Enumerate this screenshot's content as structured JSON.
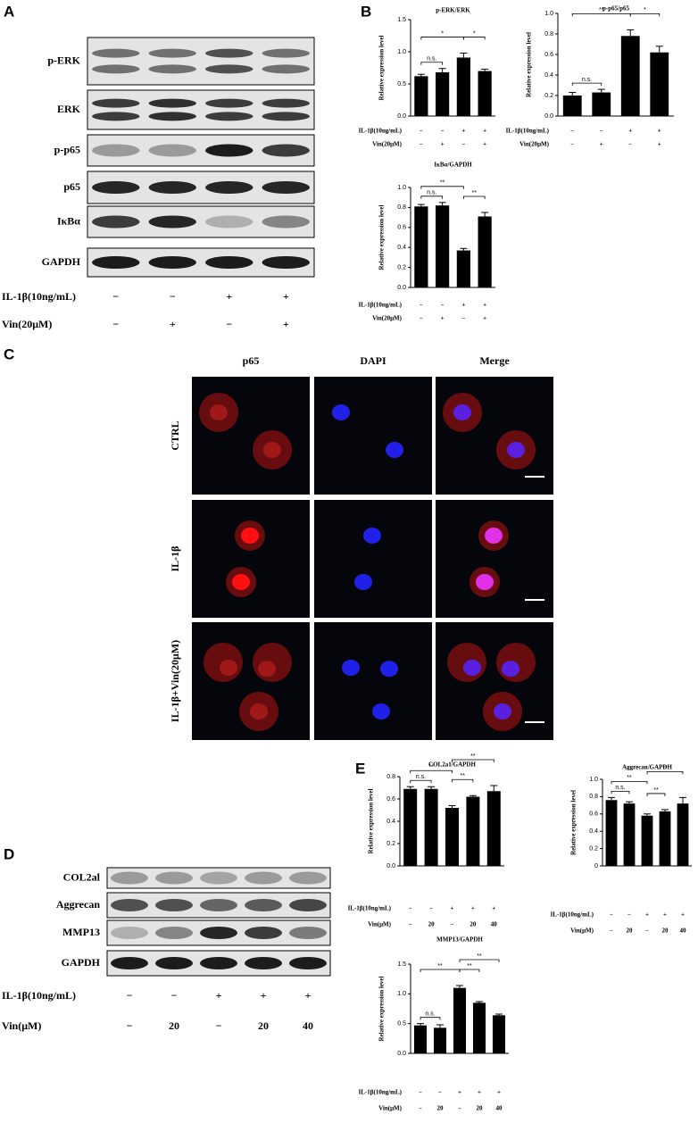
{
  "panel_labels": [
    "A",
    "B",
    "C",
    "D",
    "E"
  ],
  "blot_a": {
    "rows": [
      "p-ERK",
      "ERK",
      "p-p65",
      "p65",
      "IκBα",
      "GAPDH"
    ],
    "conditions": [
      {
        "label": "IL-1β(10ng/mL)",
        "signs": [
          "−",
          "−",
          "+",
          "+"
        ]
      },
      {
        "label": "Vin(20μM)",
        "signs": [
          "−",
          "+",
          "−",
          "+"
        ]
      }
    ]
  },
  "panel_c": {
    "columns": [
      "p65",
      "DAPI",
      "Merge"
    ],
    "rows": [
      "CTRL",
      "IL-1β",
      "IL-1β+Vin(20μM)"
    ]
  },
  "blot_d": {
    "rows": [
      "COL2al",
      "Aggrecan",
      "MMP13",
      "GAPDH"
    ],
    "conditions": [
      {
        "label": "IL-1β(10ng/mL)",
        "signs": [
          "−",
          "−",
          "+",
          "+",
          "+"
        ]
      },
      {
        "label": "Vin(μM)",
        "signs": [
          "−",
          "20",
          "−",
          "20",
          "40"
        ]
      }
    ]
  },
  "chart_data": [
    {
      "type": "bar",
      "title": "p-ERK/ERK",
      "y_label": "Relative expression level",
      "color": "#000000",
      "values": [
        0.62,
        0.68,
        0.91,
        0.7
      ],
      "errors": [
        0.03,
        0.06,
        0.07,
        0.03
      ],
      "ylim": [
        0,
        1.5
      ],
      "yticks": [
        {
          "value": 0,
          "label": "0.0"
        },
        0.5,
        {
          "value": 1,
          "label": "1.0"
        },
        1.5
      ],
      "conditions": [
        {
          "label": "IL-1β(10ng/mL)",
          "signs": [
            "−",
            "−",
            "+",
            "+"
          ]
        },
        {
          "label": "Vin(20μM)",
          "signs": [
            "−",
            "+",
            "−",
            "+"
          ]
        }
      ],
      "comparisons": [
        {
          "pair": [
            0,
            1
          ],
          "label": "n.s."
        },
        {
          "pair": [
            0,
            2
          ],
          "label": "*"
        },
        {
          "pair": [
            2,
            3
          ],
          "label": "*"
        }
      ]
    },
    {
      "type": "bar",
      "title": "p-p65/p65",
      "y_label": "Relative expression level",
      "color": "#000000",
      "values": [
        0.2,
        0.23,
        0.78,
        0.62
      ],
      "errors": [
        0.03,
        0.03,
        0.06,
        0.06
      ],
      "ylim": [
        0,
        1
      ],
      "yticks": [
        {
          "value": 0,
          "label": "0.0"
        },
        0.2,
        0.4,
        0.6,
        0.8,
        {
          "value": 1,
          "label": "1.0"
        }
      ],
      "conditions": [
        {
          "label": "IL-1β(10ng/mL)",
          "signs": [
            "−",
            "−",
            "+",
            "+"
          ]
        },
        {
          "label": "Vin(20μM)",
          "signs": [
            "−",
            "+",
            "−",
            "+"
          ]
        }
      ],
      "comparisons": [
        {
          "pair": [
            0,
            1
          ],
          "label": "n.s."
        },
        {
          "pair": [
            0,
            2
          ],
          "label": "**"
        },
        {
          "pair": [
            2,
            3
          ],
          "label": "*"
        }
      ]
    },
    {
      "type": "bar",
      "title": "IκBα/GAPDH",
      "y_label": "Relative expression level",
      "color": "#000000",
      "values": [
        0.81,
        0.82,
        0.37,
        0.71
      ],
      "errors": [
        0.02,
        0.03,
        0.02,
        0.04
      ],
      "ylim": [
        0,
        1
      ],
      "yticks": [
        {
          "value": 0,
          "label": "0.0"
        },
        0.2,
        0.4,
        0.6,
        0.8,
        {
          "value": 1,
          "label": "1.0"
        }
      ],
      "conditions": [
        {
          "label": "IL-1β(10ng/mL)",
          "signs": [
            "−",
            "−",
            "+",
            "+"
          ]
        },
        {
          "label": "Vin(20μM)",
          "signs": [
            "−",
            "+",
            "−",
            "+"
          ]
        }
      ],
      "comparisons": [
        {
          "pair": [
            0,
            1
          ],
          "label": "n.s."
        },
        {
          "pair": [
            0,
            2
          ],
          "label": "**"
        },
        {
          "pair": [
            2,
            3
          ],
          "label": "**"
        }
      ]
    },
    {
      "type": "bar",
      "title": "COL2a1/GAPDH",
      "y_label": "Relative expression level",
      "color": "#000000",
      "values": [
        0.69,
        0.69,
        0.52,
        0.62,
        0.67
      ],
      "errors": [
        0.02,
        0.02,
        0.02,
        0.01,
        0.05
      ],
      "ylim": [
        0,
        0.8
      ],
      "yticks": [
        {
          "value": 0,
          "label": "0.0"
        },
        0.2,
        0.4,
        0.6,
        0.8
      ],
      "conditions": [
        {
          "label": "IL-1β(10ng/mL)",
          "signs": [
            "−",
            "−",
            "+",
            "+",
            "+"
          ]
        },
        {
          "label": "Vin(μM)",
          "signs": [
            "−",
            "20",
            "−",
            "20",
            "40"
          ]
        }
      ],
      "comparisons": [
        {
          "pair": [
            0,
            1
          ],
          "label": "n.s."
        },
        {
          "pair": [
            0,
            2
          ],
          "label": "**"
        },
        {
          "pair": [
            2,
            3
          ],
          "label": "**"
        },
        {
          "pair": [
            2,
            4
          ],
          "label": "**"
        }
      ]
    },
    {
      "type": "bar",
      "title": "Aggrecan/GAPDH",
      "y_label": "Relative expression level",
      "color": "#000000",
      "values": [
        0.76,
        0.72,
        0.58,
        0.63,
        0.72
      ],
      "errors": [
        0.03,
        0.02,
        0.02,
        0.02,
        0.07
      ],
      "ylim": [
        0,
        1
      ],
      "yticks": [
        0,
        0.2,
        0.4,
        0.6,
        0.8,
        {
          "value": 1,
          "label": "1.0"
        }
      ],
      "conditions": [
        {
          "label": "IL-1β(10ng/mL)",
          "signs": [
            "−",
            "−",
            "+",
            "+",
            "+"
          ]
        },
        {
          "label": "Vin(μM)",
          "signs": [
            "−",
            "20",
            "−",
            "20",
            "40"
          ]
        }
      ],
      "comparisons": [
        {
          "pair": [
            0,
            1
          ],
          "label": "n.s."
        },
        {
          "pair": [
            0,
            2
          ],
          "label": "**"
        },
        {
          "pair": [
            2,
            3
          ],
          "label": "**"
        },
        {
          "pair": [
            2,
            4
          ],
          "label": "**"
        }
      ]
    },
    {
      "type": "bar",
      "title": "MMP13/GAPDH",
      "y_label": "Relative expression level",
      "color": "#000000",
      "values": [
        0.47,
        0.43,
        1.1,
        0.85,
        0.64
      ],
      "errors": [
        0.03,
        0.05,
        0.04,
        0.02,
        0.02
      ],
      "ylim": [
        0,
        1.5
      ],
      "yticks": [
        {
          "value": 0,
          "label": "0.0"
        },
        0.5,
        {
          "value": 1,
          "label": "1.0"
        },
        1.5
      ],
      "conditions": [
        {
          "label": "IL-1β(10ng/mL)",
          "signs": [
            "−",
            "−",
            "+",
            "+",
            "+"
          ]
        },
        {
          "label": "Vin(μM)",
          "signs": [
            "−",
            "20",
            "−",
            "20",
            "40"
          ]
        }
      ],
      "comparisons": [
        {
          "pair": [
            0,
            1
          ],
          "label": "n.s."
        },
        {
          "pair": [
            0,
            2
          ],
          "label": "**"
        },
        {
          "pair": [
            2,
            3
          ],
          "label": "**"
        },
        {
          "pair": [
            2,
            4
          ],
          "label": "**"
        }
      ]
    }
  ]
}
